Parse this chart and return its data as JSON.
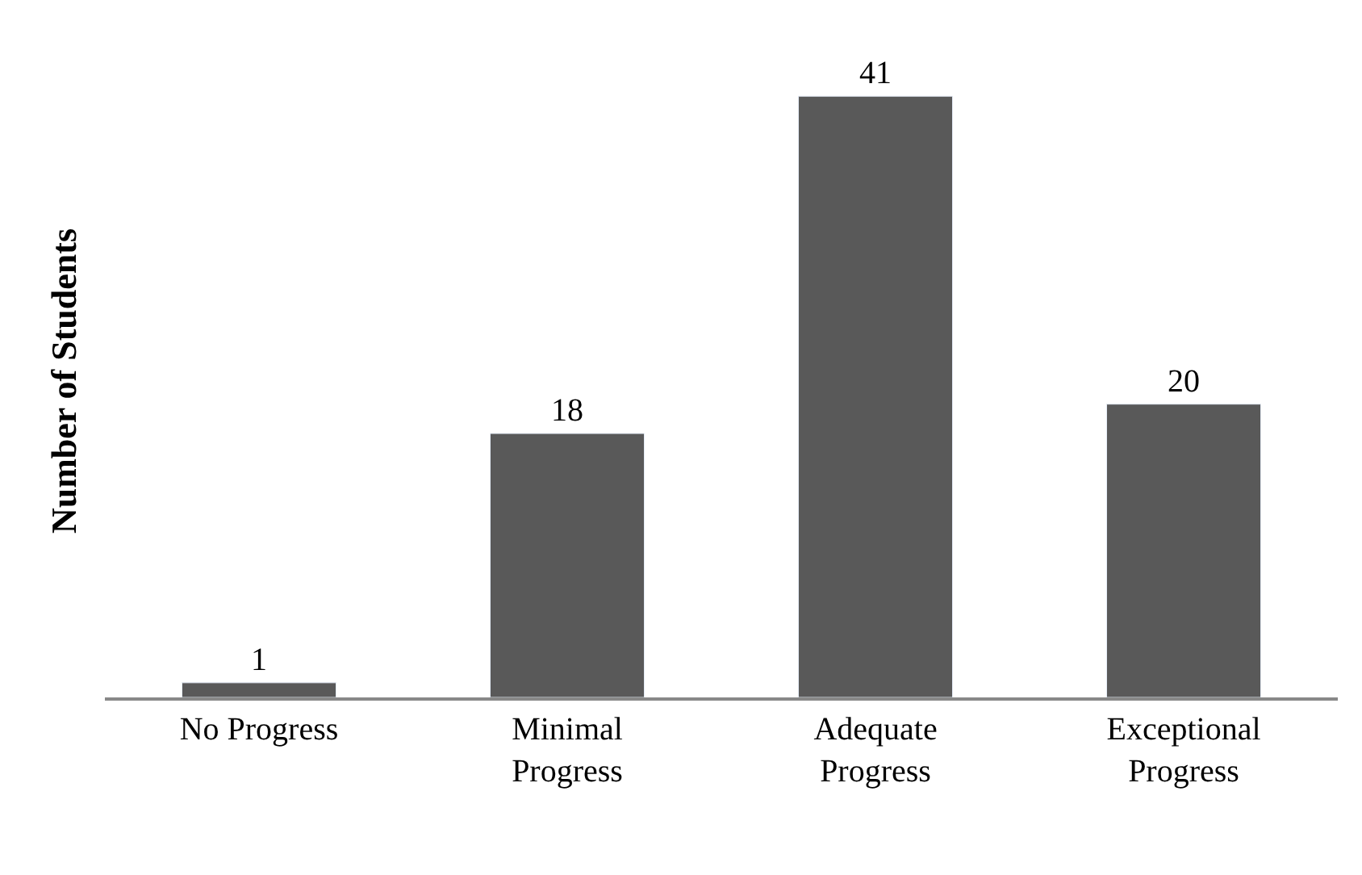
{
  "chart_data": {
    "type": "bar",
    "ylabel": "Number of Students",
    "categories": [
      "No Progress",
      "Minimal Progress",
      "Adequate Progress",
      "Exceptional Progress"
    ],
    "values": [
      1,
      18,
      41,
      20
    ],
    "color": "#595959",
    "data_labels": true
  }
}
